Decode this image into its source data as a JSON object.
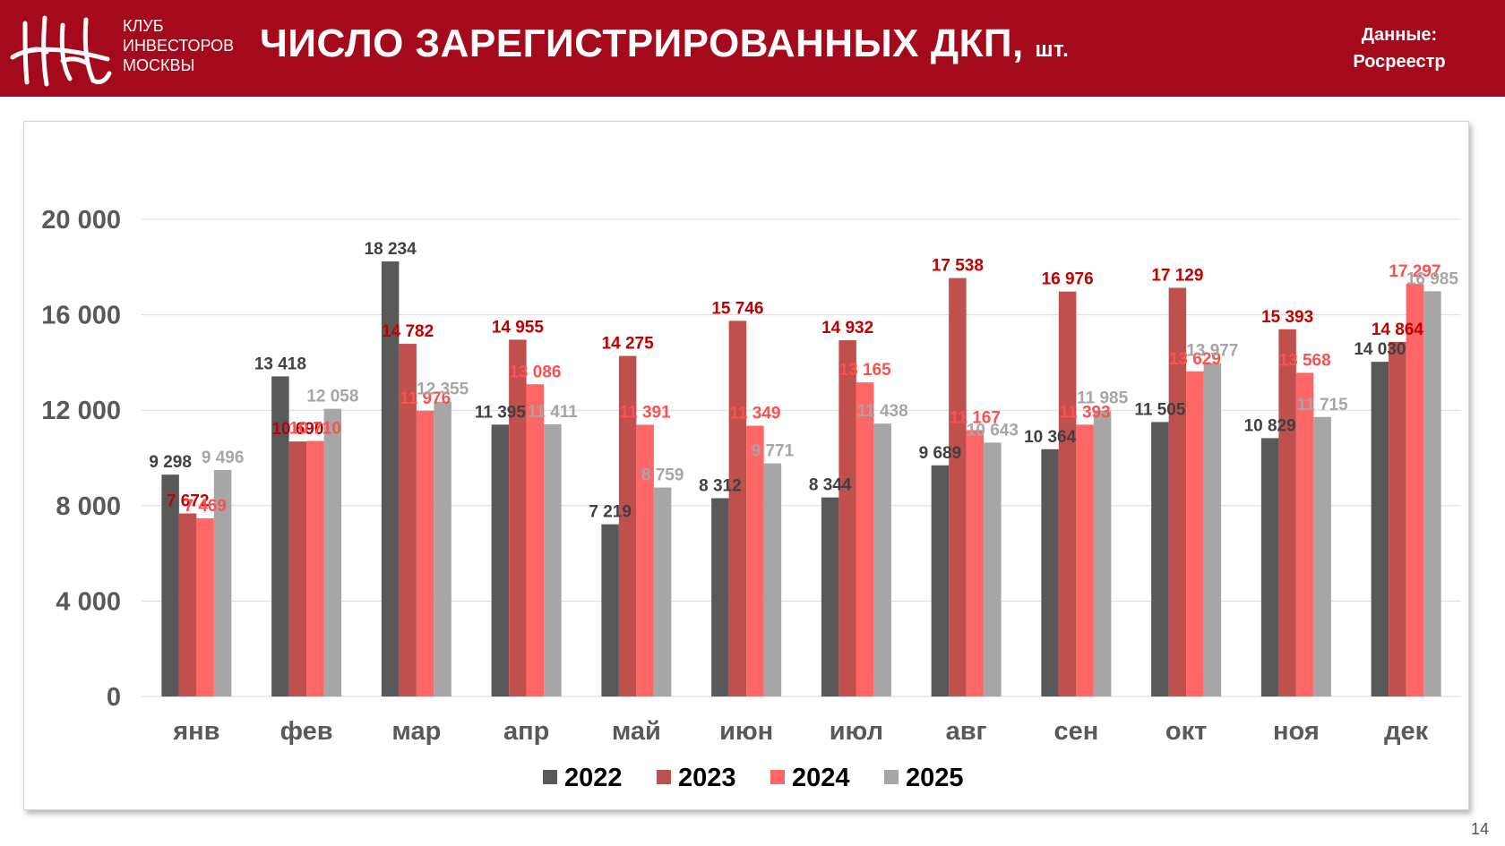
{
  "header": {
    "org_lines": [
      "КЛУБ",
      "ИНВЕСТОРОВ",
      "МОСКВЫ"
    ],
    "title": "ЧИСЛО ЗАРЕГИСТРИРОВАННЫХ ДКП,",
    "title_unit": "шт.",
    "source_label": "Данные:",
    "source_name": "Росреестр",
    "logo_icon": "club-monogram-logo",
    "color": "#a50a1c"
  },
  "page_number": "14",
  "chart_data": {
    "type": "bar",
    "title": "",
    "xlabel": "",
    "ylabel": "",
    "ylim": [
      0,
      20000
    ],
    "yticks": [
      0,
      4000,
      8000,
      12000,
      16000,
      20000
    ],
    "ytick_labels": [
      "0",
      "4 000",
      "8 000",
      "12 000",
      "16 000",
      "20 000"
    ],
    "grid": true,
    "legend_position": "bottom",
    "categories": [
      "янв",
      "фев",
      "мар",
      "апр",
      "май",
      "июн",
      "июл",
      "авг",
      "сен",
      "окт",
      "ноя",
      "дек"
    ],
    "series": [
      {
        "name": "2022",
        "color": "#595959",
        "label_color": "#404040",
        "values": [
          9298,
          13418,
          18234,
          11395,
          7219,
          8312,
          8344,
          9689,
          10364,
          11505,
          10829,
          14030
        ],
        "labels": [
          "9 298",
          "13 418",
          "18 234",
          "11 395",
          "7 219",
          "8 312",
          "8 344",
          "9 689",
          "10 364",
          "11 505",
          "10 829",
          "14 030"
        ]
      },
      {
        "name": "2023",
        "color": "#c0504d",
        "label_color": "#c00000",
        "values": [
          7672,
          10690,
          14782,
          14955,
          14275,
          15746,
          14932,
          17538,
          16976,
          17129,
          15393,
          14864
        ],
        "labels": [
          "7 672",
          "10 690",
          "14 782",
          "14 955",
          "14 275",
          "15 746",
          "14 932",
          "17 538",
          "16 976",
          "17 129",
          "15 393",
          "14 864"
        ]
      },
      {
        "name": "2024",
        "color": "#ff6666",
        "label_color": "#ff5050",
        "values": [
          7469,
          10710,
          11976,
          13086,
          11391,
          11349,
          13165,
          11167,
          11393,
          13629,
          13568,
          17297
        ],
        "labels": [
          "7 469",
          "10 710",
          "11 976",
          "13 086",
          "11 391",
          "11 349",
          "13 165",
          "11 167",
          "11 393",
          "13 629",
          "13 568",
          "17 297"
        ]
      },
      {
        "name": "2025",
        "color": "#a6a6a6",
        "label_color": "#a6a6a6",
        "values": [
          9496,
          12058,
          12355,
          11411,
          8759,
          9771,
          11438,
          10643,
          11985,
          13977,
          11715,
          16985
        ],
        "labels": [
          "9 496",
          "12 058",
          "12 355",
          "11 411",
          "8 759",
          "9 771",
          "11 438",
          "10 643",
          "11 985",
          "13 977",
          "11 715",
          "16 985"
        ]
      }
    ]
  }
}
